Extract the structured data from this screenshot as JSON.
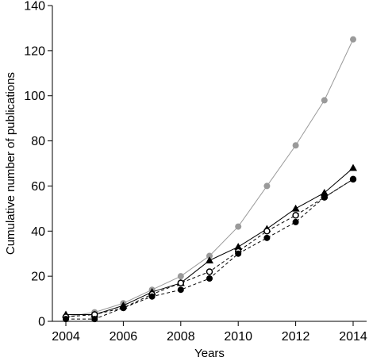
{
  "chart_data": {
    "type": "line",
    "title": "",
    "xlabel": "Years",
    "ylabel": "Cumulative number of publications",
    "xlim": [
      2004,
      2014
    ],
    "ylim": [
      0,
      140
    ],
    "x_ticks": [
      2004,
      2006,
      2008,
      2010,
      2012,
      2014
    ],
    "y_ticks": [
      0,
      20,
      40,
      60,
      80,
      100,
      120,
      140
    ],
    "x_tick_labels": [
      "2004",
      "2006",
      "2008",
      "2010",
      "2012",
      "2014"
    ],
    "y_tick_labels": [
      "0",
      "20",
      "40",
      "60",
      "80",
      "100",
      "120",
      "140"
    ],
    "grid": false,
    "legend": "none",
    "x": [
      2004,
      2005,
      2006,
      2007,
      2008,
      2009,
      2010,
      2011,
      2012,
      2013,
      2014
    ],
    "series": [
      {
        "marker": "gray-filled-circle",
        "line": "solid",
        "color": "#9a9a9a",
        "values": [
          2,
          4,
          8,
          14,
          20,
          29,
          42,
          60,
          78,
          98,
          125
        ]
      },
      {
        "marker": "black-filled-triangle",
        "line": "solid",
        "color": "#000000",
        "values": [
          3,
          3,
          7,
          13,
          17,
          27,
          33,
          41,
          50,
          57,
          68
        ]
      },
      {
        "marker": "open-circle",
        "line": "dashed",
        "color": "#000000",
        "values": [
          2,
          3,
          6,
          12,
          17,
          22,
          31,
          40,
          47,
          55,
          63
        ]
      },
      {
        "marker": "black-filled-circle",
        "line": "dashed",
        "color": "#000000",
        "values": [
          1,
          1,
          6,
          11,
          14,
          19,
          30,
          37,
          44,
          55,
          63
        ]
      }
    ]
  }
}
